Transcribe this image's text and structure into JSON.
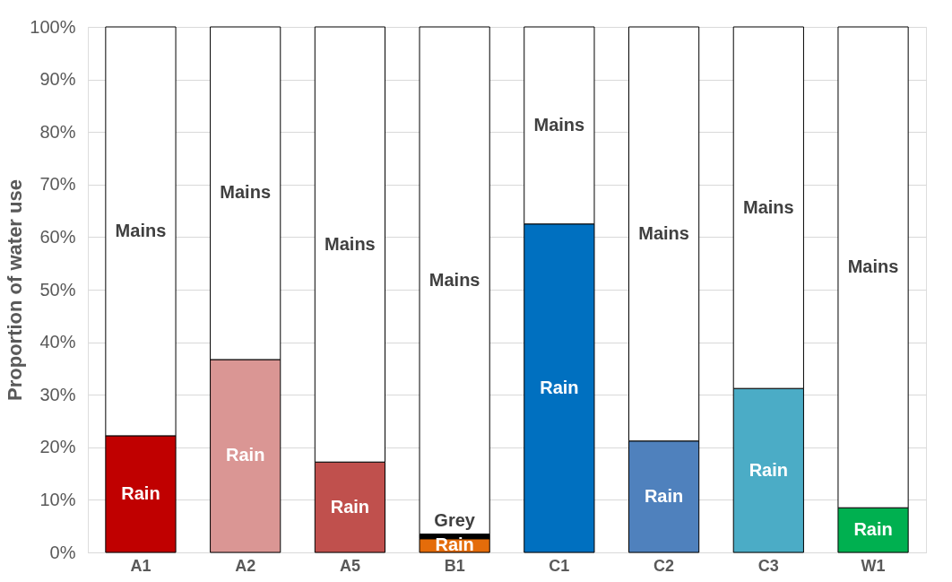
{
  "chart_data": {
    "type": "bar",
    "stacked": true,
    "ylabel": "Proportion of water use",
    "categories": [
      "A1",
      "A2",
      "A5",
      "B1",
      "C1",
      "C2",
      "C3",
      "W1"
    ],
    "series": [
      {
        "name": "Rain",
        "colors": [
          "#c00000",
          "#da9694",
          "#c0504d",
          "#e46c0a",
          "#0070c0",
          "#4f81bd",
          "#4bacc6",
          "#00b050"
        ],
        "values": [
          22.2,
          36.7,
          17.2,
          2.6,
          62.5,
          21.2,
          31.2,
          8.5
        ]
      },
      {
        "name": "Grey",
        "color": "#000000",
        "values": [
          null,
          null,
          null,
          0.9,
          null,
          null,
          null,
          null
        ]
      },
      {
        "name": "Mains",
        "color": "#ffffff",
        "values": [
          77.8,
          63.3,
          82.8,
          96.5,
          37.5,
          78.8,
          68.8,
          91.5
        ]
      }
    ],
    "ylim": [
      0,
      100
    ],
    "yticks": [
      {
        "value": 0,
        "label": "0%"
      },
      {
        "value": 10,
        "label": "10%"
      },
      {
        "value": 20,
        "label": "20%"
      },
      {
        "value": 30,
        "label": "30%"
      },
      {
        "value": 40,
        "label": "40%"
      },
      {
        "value": 50,
        "label": "50%"
      },
      {
        "value": 60,
        "label": "60%"
      },
      {
        "value": 70,
        "label": "70%"
      },
      {
        "value": 80,
        "label": "80%"
      },
      {
        "value": 90,
        "label": "90%"
      },
      {
        "value": 100,
        "label": "100%"
      }
    ],
    "grid": "y"
  }
}
